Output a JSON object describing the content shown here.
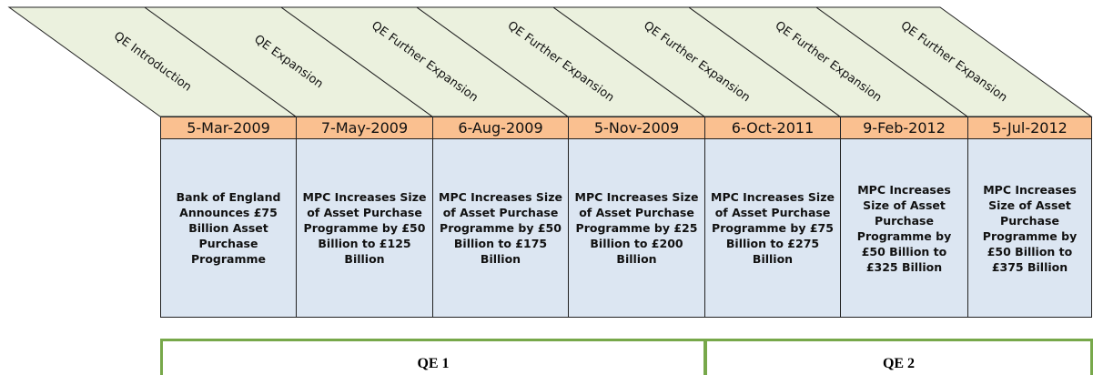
{
  "columns": [
    {
      "phase": "QE Introduction",
      "date": "5-Mar-2009",
      "description": "Bank of England Announces £75 Billion Asset Purchase Programme"
    },
    {
      "phase": "QE Expansion",
      "date": "7-May-2009",
      "description": "MPC Increases Size of Asset Purchase Programme by £50 Billion to £125 Billion"
    },
    {
      "phase": "QE Further Expansion",
      "date": "6-Aug-2009",
      "description": "MPC Increases Size of Asset Purchase Programme by £50 Billion to £175 Billion"
    },
    {
      "phase": "QE Further Expansion",
      "date": "5-Nov-2009",
      "description": "MPC Increases Size of Asset Purchase Programme by £25 Billion to £200 Billion"
    },
    {
      "phase": "QE Further Expansion",
      "date": "6-Oct-2011",
      "description": "MPC Increases Size of Asset Purchase Programme by £75 Billion to £275 Billion"
    },
    {
      "phase": "QE Further Expansion",
      "date": "9-Feb-2012",
      "description": "MPC Increases Size of Asset Purchase Programme by £50 Billion to £325 Billion"
    },
    {
      "phase": "QE Further Expansion",
      "date": "5-Jul-2012",
      "description": "MPC Increases Size of Asset Purchase Programme by £50 Billion to £375 Billion"
    }
  ],
  "groups": [
    {
      "label": "QE 1"
    },
    {
      "label": "QE 2"
    }
  ]
}
